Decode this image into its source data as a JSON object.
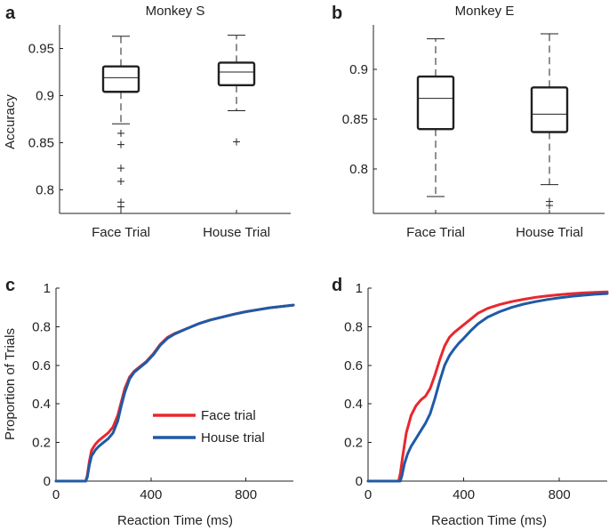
{
  "chart_data": [
    {
      "type": "box",
      "panel": "a",
      "title": "Monkey S",
      "ylabel": "Accuracy",
      "xlabel": "",
      "ylim": [
        0.775,
        0.975
      ],
      "yticks": [
        0.8,
        0.85,
        0.9,
        0.95
      ],
      "ytick_labels": [
        "0.8",
        "0.85",
        "0.9",
        "0.95"
      ],
      "categories": [
        "Face Trial",
        "House Trial"
      ],
      "boxes": [
        {
          "name": "Face Trial",
          "whisker_low": 0.87,
          "q1": 0.904,
          "median": 0.919,
          "q3": 0.931,
          "whisker_high": 0.963,
          "outliers": [
            0.86,
            0.848,
            0.823,
            0.809,
            0.787,
            0.782
          ]
        },
        {
          "name": "House Trial",
          "whisker_low": 0.884,
          "q1": 0.911,
          "median": 0.925,
          "q3": 0.935,
          "whisker_high": 0.964,
          "outliers": [
            0.851
          ]
        }
      ]
    },
    {
      "type": "box",
      "panel": "b",
      "title": "Monkey E",
      "ylabel": "",
      "xlabel": "",
      "ylim": [
        0.755,
        0.945
      ],
      "yticks": [
        0.8,
        0.85,
        0.9
      ],
      "ytick_labels": [
        "0.8",
        "0.85",
        "0.9"
      ],
      "categories": [
        "Face Trial",
        "House Trial"
      ],
      "boxes": [
        {
          "name": "Face Trial",
          "whisker_low": 0.772,
          "q1": 0.84,
          "median": 0.871,
          "q3": 0.893,
          "whisker_high": 0.931,
          "outliers": []
        },
        {
          "name": "House Trial",
          "whisker_low": 0.784,
          "q1": 0.837,
          "median": 0.855,
          "q3": 0.882,
          "whisker_high": 0.936,
          "outliers": [
            0.767,
            0.763
          ]
        }
      ]
    },
    {
      "type": "line",
      "panel": "c",
      "title": "",
      "xlabel": "Reaction Time (ms)",
      "ylabel": "Proportion of Trials",
      "xlim": [
        0,
        1000
      ],
      "ylim": [
        0,
        1
      ],
      "xticks": [
        0,
        400,
        800
      ],
      "xtick_labels": [
        "0",
        "400",
        "800"
      ],
      "yticks": [
        0,
        0.2,
        0.4,
        0.6,
        0.8,
        1
      ],
      "ytick_labels": [
        "0",
        "0.2",
        "0.4",
        "0.6",
        "0.8",
        "1"
      ],
      "legend": {
        "placement": "center-right",
        "entries": [
          "Face trial",
          "House trial"
        ]
      },
      "series": [
        {
          "name": "Face trial",
          "color": "#e8282e",
          "x": [
            0,
            125,
            132,
            140,
            150,
            165,
            180,
            200,
            220,
            240,
            260,
            275,
            290,
            310,
            330,
            350,
            380,
            410,
            440,
            470,
            500,
            550,
            600,
            650,
            700,
            750,
            800,
            850,
            900,
            950,
            1000
          ],
          "y": [
            0,
            0,
            0.03,
            0.1,
            0.16,
            0.19,
            0.21,
            0.23,
            0.25,
            0.28,
            0.34,
            0.41,
            0.48,
            0.54,
            0.57,
            0.59,
            0.62,
            0.66,
            0.71,
            0.745,
            0.765,
            0.79,
            0.815,
            0.835,
            0.85,
            0.865,
            0.878,
            0.888,
            0.898,
            0.905,
            0.912
          ]
        },
        {
          "name": "House trial",
          "color": "#1f5aa6",
          "x": [
            0,
            125,
            132,
            140,
            150,
            165,
            180,
            200,
            220,
            240,
            260,
            275,
            290,
            310,
            330,
            350,
            380,
            410,
            440,
            470,
            500,
            550,
            600,
            650,
            700,
            750,
            800,
            850,
            900,
            950,
            1000
          ],
          "y": [
            0,
            0,
            0.02,
            0.08,
            0.13,
            0.16,
            0.18,
            0.2,
            0.22,
            0.25,
            0.31,
            0.39,
            0.46,
            0.53,
            0.565,
            0.585,
            0.615,
            0.655,
            0.705,
            0.74,
            0.762,
            0.79,
            0.815,
            0.835,
            0.85,
            0.865,
            0.878,
            0.888,
            0.898,
            0.905,
            0.912
          ]
        }
      ]
    },
    {
      "type": "line",
      "panel": "d",
      "title": "",
      "xlabel": "Reaction Time (ms)",
      "ylabel": "",
      "xlim": [
        0,
        1000
      ],
      "ylim": [
        0,
        1
      ],
      "xticks": [
        0,
        400,
        800
      ],
      "xtick_labels": [
        "0",
        "400",
        "800"
      ],
      "yticks": [
        0,
        0.2,
        0.4,
        0.6,
        0.8,
        1
      ],
      "ytick_labels": [
        "0",
        "0.2",
        "0.4",
        "0.6",
        "0.8",
        "1"
      ],
      "series": [
        {
          "name": "Face trial",
          "color": "#e8282e",
          "x": [
            0,
            128,
            135,
            145,
            160,
            180,
            200,
            220,
            240,
            260,
            280,
            300,
            320,
            340,
            360,
            380,
            400,
            430,
            460,
            500,
            550,
            600,
            650,
            700,
            750,
            800,
            850,
            900,
            950,
            1000
          ],
          "y": [
            0,
            0,
            0.04,
            0.13,
            0.25,
            0.34,
            0.39,
            0.42,
            0.44,
            0.48,
            0.55,
            0.63,
            0.7,
            0.745,
            0.77,
            0.79,
            0.81,
            0.84,
            0.87,
            0.895,
            0.915,
            0.93,
            0.942,
            0.952,
            0.96,
            0.966,
            0.971,
            0.975,
            0.978,
            0.98
          ]
        },
        {
          "name": "House trial",
          "color": "#1f5aa6",
          "x": [
            0,
            135,
            142,
            152,
            165,
            180,
            200,
            220,
            240,
            260,
            280,
            300,
            320,
            340,
            360,
            380,
            400,
            430,
            460,
            500,
            550,
            600,
            650,
            700,
            750,
            800,
            850,
            900,
            950,
            1000
          ],
          "y": [
            0,
            0,
            0.03,
            0.09,
            0.14,
            0.18,
            0.22,
            0.26,
            0.3,
            0.35,
            0.43,
            0.52,
            0.6,
            0.65,
            0.685,
            0.715,
            0.74,
            0.78,
            0.815,
            0.85,
            0.878,
            0.9,
            0.917,
            0.93,
            0.941,
            0.95,
            0.957,
            0.963,
            0.968,
            0.972
          ]
        }
      ]
    }
  ]
}
